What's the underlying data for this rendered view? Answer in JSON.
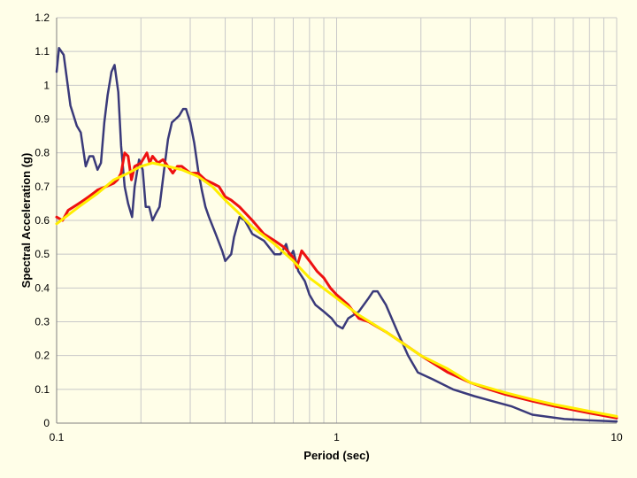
{
  "colors": {
    "background": "#fffee8",
    "grid": "#c8c8c8",
    "axis": "#808080"
  },
  "chart_data": {
    "type": "line",
    "title": "",
    "xlabel": "Period (sec)",
    "ylabel": "Spectral Acceleration (g)",
    "x_scale": "log",
    "xlim": [
      0.1,
      10
    ],
    "ylim": [
      0,
      1.2
    ],
    "x_ticks": [
      0.1,
      1,
      10
    ],
    "x_tick_labels": [
      "0.1",
      "1",
      "10"
    ],
    "y_ticks": [
      0,
      0.1,
      0.2,
      0.3,
      0.4,
      0.5,
      0.6,
      0.7,
      0.8,
      0.9,
      1,
      1.1,
      1.2
    ],
    "y_tick_labels": [
      "0",
      "0.1",
      "0.2",
      "0.3",
      "0.4",
      "0.5",
      "0.6",
      "0.7",
      "0.8",
      "0.9",
      "1",
      "1.1",
      "1.2"
    ],
    "grid": true,
    "legend": "none",
    "series": [
      {
        "color": "#3a3a7a",
        "x": [
          0.1,
          0.102,
          0.106,
          0.112,
          0.118,
          0.122,
          0.127,
          0.131,
          0.135,
          0.14,
          0.144,
          0.148,
          0.152,
          0.157,
          0.161,
          0.166,
          0.17,
          0.175,
          0.18,
          0.186,
          0.19,
          0.197,
          0.203,
          0.208,
          0.214,
          0.22,
          0.226,
          0.233,
          0.242,
          0.25,
          0.258,
          0.266,
          0.274,
          0.283,
          0.29,
          0.3,
          0.31,
          0.32,
          0.33,
          0.34,
          0.35,
          0.37,
          0.39,
          0.4,
          0.42,
          0.43,
          0.45,
          0.47,
          0.5,
          0.55,
          0.6,
          0.63,
          0.66,
          0.68,
          0.7,
          0.73,
          0.77,
          0.8,
          0.84,
          0.9,
          0.96,
          1.0,
          1.05,
          1.1,
          1.2,
          1.3,
          1.35,
          1.4,
          1.5,
          1.65,
          1.8,
          1.95,
          2.2,
          2.6,
          3.1,
          3.6,
          4.2,
          5.0,
          6.5,
          8.0,
          10.0
        ],
        "y": [
          1.04,
          1.11,
          1.09,
          0.94,
          0.88,
          0.86,
          0.76,
          0.79,
          0.79,
          0.75,
          0.77,
          0.89,
          0.97,
          1.04,
          1.06,
          0.98,
          0.82,
          0.7,
          0.65,
          0.61,
          0.7,
          0.78,
          0.75,
          0.64,
          0.64,
          0.6,
          0.62,
          0.64,
          0.75,
          0.84,
          0.89,
          0.9,
          0.91,
          0.93,
          0.93,
          0.89,
          0.83,
          0.75,
          0.69,
          0.64,
          0.61,
          0.56,
          0.51,
          0.48,
          0.5,
          0.55,
          0.61,
          0.6,
          0.56,
          0.54,
          0.5,
          0.5,
          0.53,
          0.49,
          0.51,
          0.45,
          0.42,
          0.38,
          0.35,
          0.33,
          0.31,
          0.29,
          0.28,
          0.31,
          0.33,
          0.37,
          0.39,
          0.39,
          0.35,
          0.27,
          0.2,
          0.15,
          0.13,
          0.1,
          0.08,
          0.065,
          0.05,
          0.025,
          0.012,
          0.008,
          0.005
        ]
      },
      {
        "color": "#ee1111",
        "x": [
          0.1,
          0.105,
          0.11,
          0.115,
          0.12,
          0.125,
          0.13,
          0.135,
          0.14,
          0.15,
          0.16,
          0.165,
          0.17,
          0.175,
          0.18,
          0.185,
          0.19,
          0.2,
          0.21,
          0.215,
          0.22,
          0.23,
          0.24,
          0.25,
          0.26,
          0.27,
          0.28,
          0.3,
          0.32,
          0.34,
          0.36,
          0.38,
          0.4,
          0.42,
          0.45,
          0.5,
          0.55,
          0.6,
          0.65,
          0.7,
          0.72,
          0.75,
          0.8,
          0.85,
          0.9,
          0.95,
          1.0,
          1.1,
          1.2,
          1.3,
          1.5,
          1.7,
          2.0,
          2.5,
          3.0,
          3.5,
          4.0,
          5.0,
          6.0,
          8.0,
          10.0
        ],
        "y": [
          0.61,
          0.6,
          0.63,
          0.64,
          0.65,
          0.66,
          0.67,
          0.68,
          0.69,
          0.7,
          0.71,
          0.72,
          0.74,
          0.8,
          0.79,
          0.72,
          0.76,
          0.77,
          0.8,
          0.77,
          0.79,
          0.77,
          0.78,
          0.76,
          0.74,
          0.76,
          0.76,
          0.74,
          0.74,
          0.72,
          0.71,
          0.7,
          0.67,
          0.66,
          0.64,
          0.6,
          0.56,
          0.54,
          0.52,
          0.49,
          0.46,
          0.51,
          0.48,
          0.45,
          0.43,
          0.4,
          0.38,
          0.35,
          0.31,
          0.3,
          0.27,
          0.24,
          0.2,
          0.15,
          0.12,
          0.1,
          0.085,
          0.065,
          0.05,
          0.03,
          0.015
        ]
      },
      {
        "color": "#ffee00",
        "x": [
          0.1,
          0.12,
          0.14,
          0.16,
          0.18,
          0.2,
          0.22,
          0.25,
          0.28,
          0.32,
          0.36,
          0.4,
          0.45,
          0.5,
          0.6,
          0.7,
          0.8,
          1.0,
          1.2,
          1.5,
          2.0,
          2.5,
          3.0,
          4.0,
          5.0,
          6.0,
          8.0,
          10.0
        ],
        "y": [
          0.59,
          0.64,
          0.68,
          0.72,
          0.74,
          0.76,
          0.77,
          0.76,
          0.75,
          0.73,
          0.7,
          0.66,
          0.62,
          0.58,
          0.53,
          0.48,
          0.43,
          0.37,
          0.32,
          0.27,
          0.2,
          0.16,
          0.12,
          0.09,
          0.07,
          0.055,
          0.035,
          0.02
        ]
      }
    ]
  }
}
